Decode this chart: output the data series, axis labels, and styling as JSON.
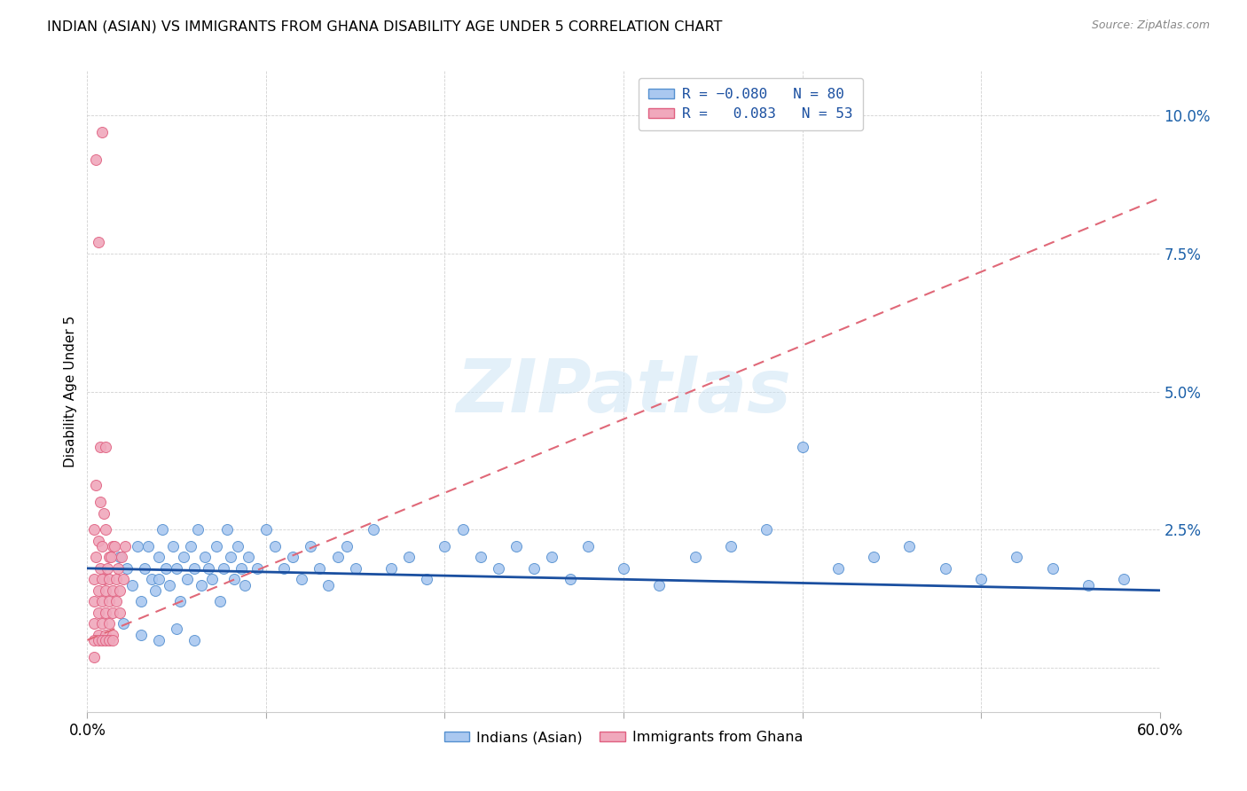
{
  "title": "INDIAN (ASIAN) VS IMMIGRANTS FROM GHANA DISABILITY AGE UNDER 5 CORRELATION CHART",
  "source": "Source: ZipAtlas.com",
  "ylabel": "Disability Age Under 5",
  "xlim": [
    0.0,
    0.6
  ],
  "ylim": [
    -0.008,
    0.108
  ],
  "yticks": [
    0.0,
    0.025,
    0.05,
    0.075,
    0.1
  ],
  "ytick_labels": [
    "",
    "2.5%",
    "5.0%",
    "7.5%",
    "10.0%"
  ],
  "blue_color": "#aac8f0",
  "pink_color": "#f0a8bc",
  "blue_edge_color": "#5590d0",
  "pink_edge_color": "#e06080",
  "blue_line_color": "#1a4fa0",
  "pink_line_color": "#e06878",
  "watermark": "ZIPatlas",
  "title_fontsize": 11.5,
  "blue_scatter": [
    [
      0.018,
      0.02
    ],
    [
      0.022,
      0.018
    ],
    [
      0.025,
      0.015
    ],
    [
      0.028,
      0.022
    ],
    [
      0.03,
      0.012
    ],
    [
      0.032,
      0.018
    ],
    [
      0.034,
      0.022
    ],
    [
      0.036,
      0.016
    ],
    [
      0.038,
      0.014
    ],
    [
      0.04,
      0.02
    ],
    [
      0.04,
      0.016
    ],
    [
      0.042,
      0.025
    ],
    [
      0.044,
      0.018
    ],
    [
      0.046,
      0.015
    ],
    [
      0.048,
      0.022
    ],
    [
      0.05,
      0.018
    ],
    [
      0.052,
      0.012
    ],
    [
      0.054,
      0.02
    ],
    [
      0.056,
      0.016
    ],
    [
      0.058,
      0.022
    ],
    [
      0.06,
      0.018
    ],
    [
      0.062,
      0.025
    ],
    [
      0.064,
      0.015
    ],
    [
      0.066,
      0.02
    ],
    [
      0.068,
      0.018
    ],
    [
      0.07,
      0.016
    ],
    [
      0.072,
      0.022
    ],
    [
      0.074,
      0.012
    ],
    [
      0.076,
      0.018
    ],
    [
      0.078,
      0.025
    ],
    [
      0.08,
      0.02
    ],
    [
      0.082,
      0.016
    ],
    [
      0.084,
      0.022
    ],
    [
      0.086,
      0.018
    ],
    [
      0.088,
      0.015
    ],
    [
      0.09,
      0.02
    ],
    [
      0.095,
      0.018
    ],
    [
      0.1,
      0.025
    ],
    [
      0.105,
      0.022
    ],
    [
      0.11,
      0.018
    ],
    [
      0.115,
      0.02
    ],
    [
      0.12,
      0.016
    ],
    [
      0.125,
      0.022
    ],
    [
      0.13,
      0.018
    ],
    [
      0.135,
      0.015
    ],
    [
      0.14,
      0.02
    ],
    [
      0.145,
      0.022
    ],
    [
      0.15,
      0.018
    ],
    [
      0.16,
      0.025
    ],
    [
      0.17,
      0.018
    ],
    [
      0.18,
      0.02
    ],
    [
      0.19,
      0.016
    ],
    [
      0.2,
      0.022
    ],
    [
      0.21,
      0.025
    ],
    [
      0.22,
      0.02
    ],
    [
      0.23,
      0.018
    ],
    [
      0.24,
      0.022
    ],
    [
      0.25,
      0.018
    ],
    [
      0.26,
      0.02
    ],
    [
      0.27,
      0.016
    ],
    [
      0.28,
      0.022
    ],
    [
      0.3,
      0.018
    ],
    [
      0.32,
      0.015
    ],
    [
      0.34,
      0.02
    ],
    [
      0.36,
      0.022
    ],
    [
      0.38,
      0.025
    ],
    [
      0.4,
      0.04
    ],
    [
      0.42,
      0.018
    ],
    [
      0.44,
      0.02
    ],
    [
      0.46,
      0.022
    ],
    [
      0.48,
      0.018
    ],
    [
      0.5,
      0.016
    ],
    [
      0.52,
      0.02
    ],
    [
      0.54,
      0.018
    ],
    [
      0.56,
      0.015
    ],
    [
      0.58,
      0.016
    ],
    [
      0.02,
      0.008
    ],
    [
      0.03,
      0.006
    ],
    [
      0.04,
      0.005
    ],
    [
      0.05,
      0.007
    ],
    [
      0.06,
      0.005
    ]
  ],
  "pink_scatter": [
    [
      0.005,
      0.092
    ],
    [
      0.008,
      0.097
    ],
    [
      0.006,
      0.077
    ],
    [
      0.007,
      0.04
    ],
    [
      0.01,
      0.04
    ],
    [
      0.005,
      0.033
    ],
    [
      0.007,
      0.03
    ],
    [
      0.009,
      0.028
    ],
    [
      0.004,
      0.025
    ],
    [
      0.006,
      0.023
    ],
    [
      0.008,
      0.022
    ],
    [
      0.01,
      0.025
    ],
    [
      0.012,
      0.02
    ],
    [
      0.014,
      0.022
    ],
    [
      0.005,
      0.02
    ],
    [
      0.007,
      0.018
    ],
    [
      0.009,
      0.016
    ],
    [
      0.011,
      0.018
    ],
    [
      0.013,
      0.02
    ],
    [
      0.015,
      0.022
    ],
    [
      0.017,
      0.018
    ],
    [
      0.019,
      0.02
    ],
    [
      0.021,
      0.022
    ],
    [
      0.004,
      0.016
    ],
    [
      0.006,
      0.014
    ],
    [
      0.008,
      0.016
    ],
    [
      0.01,
      0.014
    ],
    [
      0.012,
      0.016
    ],
    [
      0.014,
      0.014
    ],
    [
      0.016,
      0.016
    ],
    [
      0.018,
      0.014
    ],
    [
      0.02,
      0.016
    ],
    [
      0.004,
      0.012
    ],
    [
      0.006,
      0.01
    ],
    [
      0.008,
      0.012
    ],
    [
      0.01,
      0.01
    ],
    [
      0.012,
      0.012
    ],
    [
      0.014,
      0.01
    ],
    [
      0.016,
      0.012
    ],
    [
      0.018,
      0.01
    ],
    [
      0.004,
      0.008
    ],
    [
      0.006,
      0.006
    ],
    [
      0.008,
      0.008
    ],
    [
      0.01,
      0.006
    ],
    [
      0.012,
      0.008
    ],
    [
      0.014,
      0.006
    ],
    [
      0.004,
      0.005
    ],
    [
      0.006,
      0.005
    ],
    [
      0.008,
      0.005
    ],
    [
      0.01,
      0.005
    ],
    [
      0.012,
      0.005
    ],
    [
      0.014,
      0.005
    ],
    [
      0.004,
      0.002
    ]
  ],
  "blue_trendline": [
    0.0,
    0.6,
    0.018,
    0.014
  ],
  "pink_trendline": [
    0.0,
    0.6,
    0.005,
    0.085
  ]
}
